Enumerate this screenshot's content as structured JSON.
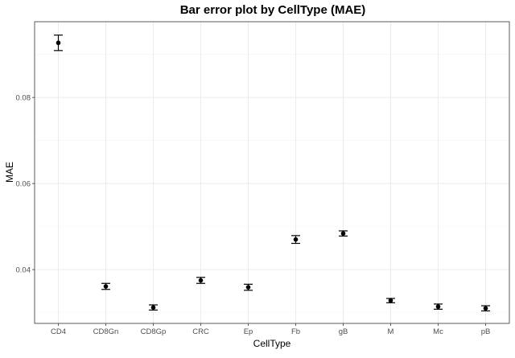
{
  "chart_data": {
    "type": "scatter",
    "title": "Bar error plot by CellType (MAE)",
    "xlabel": "CellType",
    "ylabel": "MAE",
    "categories": [
      "CD4",
      "CD8Gn",
      "CD8Gp",
      "CRC",
      "Ep",
      "Fb",
      "gB",
      "M",
      "Mc",
      "pB"
    ],
    "values": [
      0.0927,
      0.0361,
      0.0312,
      0.0375,
      0.0359,
      0.047,
      0.0484,
      0.0328,
      0.0314,
      0.031
    ],
    "error_low": [
      0.0909,
      0.0354,
      0.0306,
      0.0368,
      0.0352,
      0.0461,
      0.0478,
      0.0323,
      0.0308,
      0.0304
    ],
    "error_high": [
      0.0945,
      0.0368,
      0.0318,
      0.0382,
      0.0366,
      0.0479,
      0.049,
      0.0333,
      0.032,
      0.0316
    ],
    "yticks": [
      0.04,
      0.06,
      0.08
    ],
    "ytick_labels": [
      "0.04",
      "0.06",
      "0.08"
    ],
    "ylim": [
      0.0275,
      0.0976
    ],
    "grid": true,
    "legend": "none",
    "colors": {
      "point": "#000000",
      "grid": "#ebebeb",
      "panel_border": "#333333"
    }
  }
}
